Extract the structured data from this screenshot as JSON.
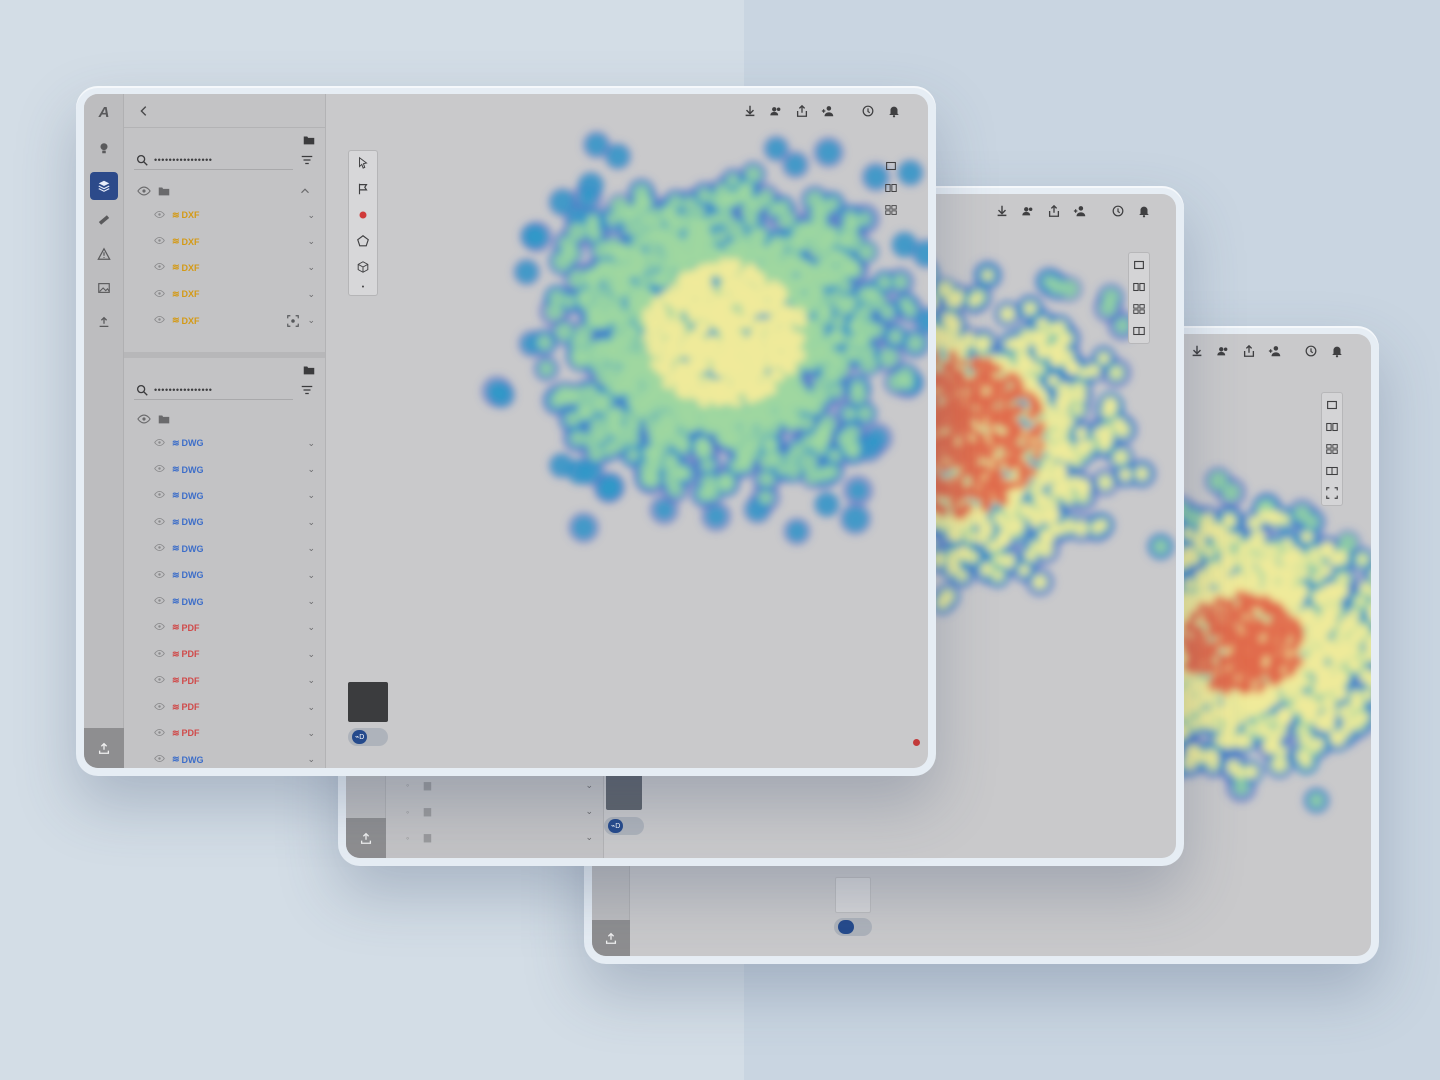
{
  "frames": {
    "main": {
      "panel_top": {
        "search_value": "••••••••••••••••",
        "items": [
          {
            "tag": "DXF",
            "kind": "dxf"
          },
          {
            "tag": "DXF",
            "kind": "dxf"
          },
          {
            "tag": "DXF",
            "kind": "dxf"
          },
          {
            "tag": "DXF",
            "kind": "dxf"
          },
          {
            "tag": "DXF",
            "kind": "dxf"
          }
        ]
      },
      "panel_bottom": {
        "search_value": "••••••••••••••••",
        "items": [
          {
            "tag": "DWG",
            "kind": "dwg"
          },
          {
            "tag": "DWG",
            "kind": "dwg"
          },
          {
            "tag": "DWG",
            "kind": "dwg"
          },
          {
            "tag": "DWG",
            "kind": "dwg"
          },
          {
            "tag": "DWG",
            "kind": "dwg"
          },
          {
            "tag": "DWG",
            "kind": "dwg"
          },
          {
            "tag": "DWG",
            "kind": "dwg"
          },
          {
            "tag": "PDF",
            "kind": "pdf"
          },
          {
            "tag": "PDF",
            "kind": "pdf"
          },
          {
            "tag": "PDF",
            "kind": "pdf"
          },
          {
            "tag": "PDF",
            "kind": "pdf"
          },
          {
            "tag": "PDF",
            "kind": "pdf"
          },
          {
            "tag": "DWG",
            "kind": "dwg"
          }
        ]
      },
      "toggle_label": "⌁D"
    },
    "middle": {
      "toggle_label": "⌁D"
    },
    "back": {}
  },
  "colors": {
    "accent": "#2c4a8a",
    "dxf": "#d49a16",
    "dwg": "#3d6ec9",
    "pdf": "#d04a4a",
    "canvas": "#c9c9cb"
  },
  "icons": {
    "rail": [
      "logo-icon",
      "layers-icon",
      "ruler-icon",
      "warning-icon",
      "image-icon",
      "upload-icon"
    ],
    "topbar": [
      "download-icon",
      "team-icon",
      "share-icon",
      "add-user-icon",
      "history-icon",
      "bell-icon"
    ],
    "tools": [
      "cursor-icon",
      "flag-icon",
      "marker-icon",
      "polygon-icon",
      "cube-icon"
    ]
  }
}
